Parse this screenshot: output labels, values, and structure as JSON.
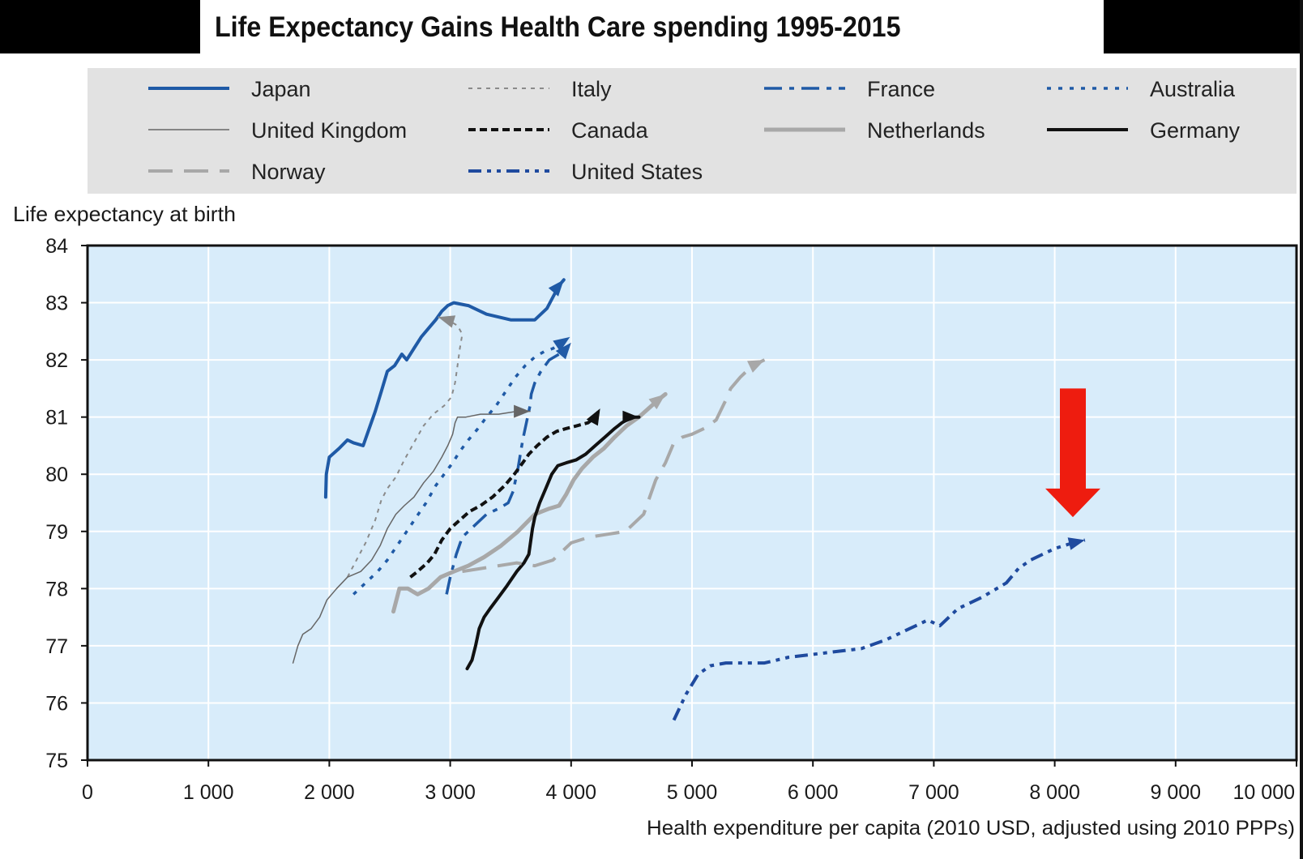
{
  "chart_data": {
    "type": "line",
    "title": "Life Expectancy Gains Health Care spending 1995-2015",
    "xlabel": "Health expenditure per capita (2010 USD, adjusted using 2010 PPPs)",
    "ylabel": "Life expectancy at birth",
    "xlim": [
      0,
      10000
    ],
    "ylim": [
      75,
      84
    ],
    "xticks": [
      0,
      1000,
      2000,
      3000,
      4000,
      5000,
      6000,
      7000,
      8000,
      9000,
      10000
    ],
    "xtick_labels": [
      "0",
      "1 000",
      "2 000",
      "3 000",
      "4 000",
      "5 000",
      "6 000",
      "7 000",
      "8 000",
      "9 000",
      "10 000"
    ],
    "yticks": [
      75,
      76,
      77,
      78,
      79,
      80,
      81,
      82,
      83,
      84
    ],
    "ytick_labels": [
      "75",
      "76",
      "77",
      "78",
      "79",
      "80",
      "81",
      "82",
      "83",
      "84"
    ],
    "grid": true,
    "legend_position": "top",
    "series": [
      {
        "name": "Japan",
        "color": "#1f5aa6",
        "style": "solid",
        "width": 4,
        "x": [
          1970,
          1975,
          2000,
          2080,
          2150,
          2200,
          2280,
          2330,
          2380,
          2430,
          2480,
          2540,
          2600,
          2640,
          2700,
          2760,
          2820,
          2880,
          2930,
          2980,
          3030,
          3150,
          3300,
          3500,
          3700,
          3800,
          3850,
          3900,
          3940
        ],
        "y": [
          79.6,
          80.0,
          80.3,
          80.45,
          80.6,
          80.55,
          80.5,
          80.8,
          81.1,
          81.45,
          81.8,
          81.9,
          82.1,
          82.0,
          82.2,
          82.4,
          82.55,
          82.7,
          82.85,
          82.95,
          83.0,
          82.95,
          82.8,
          82.7,
          82.7,
          82.9,
          83.1,
          83.3,
          83.4
        ]
      },
      {
        "name": "Italy",
        "color": "#8a8a8a",
        "style": "dotted-fine",
        "width": 2,
        "x": [
          2150,
          2200,
          2300,
          2380,
          2430,
          2480,
          2550,
          2620,
          2700,
          2780,
          2860,
          2950,
          3010,
          3040,
          3060,
          3080,
          3100,
          3060,
          2980,
          2900
        ],
        "y": [
          78.2,
          78.4,
          78.8,
          79.2,
          79.55,
          79.75,
          79.95,
          80.25,
          80.55,
          80.85,
          81.05,
          81.2,
          81.35,
          81.6,
          81.9,
          82.2,
          82.45,
          82.6,
          82.7,
          82.75
        ]
      },
      {
        "name": "France",
        "color": "#1f5aa6",
        "style": "dash-dot",
        "width": 3.5,
        "x": [
          2970,
          3000,
          3050,
          3100,
          3200,
          3300,
          3400,
          3480,
          3520,
          3560,
          3600,
          3640,
          3660,
          3670,
          3700,
          3750,
          3820,
          3900,
          3960,
          4000
        ],
        "y": [
          77.9,
          78.2,
          78.6,
          78.9,
          79.1,
          79.3,
          79.4,
          79.5,
          79.7,
          80.1,
          80.6,
          81.0,
          81.2,
          81.4,
          81.6,
          81.8,
          82.0,
          82.1,
          82.2,
          82.3
        ]
      },
      {
        "name": "Australia",
        "color": "#1f5aa6",
        "style": "dotted",
        "width": 3.5,
        "x": [
          2200,
          2300,
          2400,
          2480,
          2560,
          2640,
          2720,
          2800,
          2880,
          2950,
          3020,
          3080,
          3150,
          3230,
          3300,
          3380,
          3460,
          3540,
          3620,
          3700,
          3780,
          3850,
          3920,
          3990
        ],
        "y": [
          77.9,
          78.1,
          78.3,
          78.5,
          78.75,
          79.0,
          79.25,
          79.5,
          79.8,
          80.0,
          80.2,
          80.4,
          80.6,
          80.8,
          81.0,
          81.2,
          81.45,
          81.7,
          81.9,
          82.05,
          82.15,
          82.2,
          82.3,
          82.4
        ]
      },
      {
        "name": "United Kingdom",
        "color": "#666666",
        "style": "solid",
        "width": 1.5,
        "x": [
          1700,
          1740,
          1780,
          1850,
          1920,
          1980,
          2060,
          2150,
          2260,
          2350,
          2420,
          2480,
          2550,
          2620,
          2700,
          2780,
          2860,
          2930,
          2980,
          3020,
          3040,
          3060,
          3130,
          3250,
          3400,
          3550,
          3660
        ],
        "y": [
          76.7,
          77.0,
          77.2,
          77.3,
          77.5,
          77.8,
          78.0,
          78.2,
          78.3,
          78.5,
          78.75,
          79.05,
          79.3,
          79.45,
          79.6,
          79.85,
          80.05,
          80.3,
          80.5,
          80.7,
          80.9,
          81.0,
          81.0,
          81.05,
          81.05,
          81.1,
          81.1
        ]
      },
      {
        "name": "Canada",
        "color": "#111111",
        "style": "dashed-short",
        "width": 4,
        "x": [
          2670,
          2730,
          2810,
          2870,
          2930,
          3000,
          3080,
          3160,
          3250,
          3350,
          3450,
          3530,
          3600,
          3650,
          3720,
          3800,
          3880,
          3960,
          4050,
          4140,
          4200,
          4240
        ],
        "y": [
          78.2,
          78.3,
          78.45,
          78.6,
          78.85,
          79.05,
          79.2,
          79.35,
          79.45,
          79.6,
          79.8,
          80.0,
          80.2,
          80.35,
          80.5,
          80.65,
          80.75,
          80.8,
          80.85,
          80.9,
          81.0,
          81.15
        ]
      },
      {
        "name": "Netherlands",
        "color": "#a8a8a8",
        "style": "solid",
        "width": 5,
        "x": [
          2530,
          2580,
          2650,
          2730,
          2820,
          2920,
          3030,
          3150,
          3280,
          3420,
          3560,
          3700,
          3820,
          3900,
          3960,
          4020,
          4090,
          4180,
          4270,
          4360,
          4460,
          4560,
          4640,
          4720,
          4780
        ],
        "y": [
          77.6,
          78.0,
          78.0,
          77.9,
          78.0,
          78.2,
          78.3,
          78.4,
          78.55,
          78.75,
          79.0,
          79.3,
          79.4,
          79.45,
          79.65,
          79.9,
          80.1,
          80.3,
          80.45,
          80.65,
          80.85,
          81.0,
          81.15,
          81.3,
          81.4
        ]
      },
      {
        "name": "Germany",
        "color": "#111111",
        "style": "solid",
        "width": 4,
        "x": [
          3140,
          3180,
          3210,
          3240,
          3280,
          3330,
          3400,
          3470,
          3550,
          3610,
          3650,
          3680,
          3700,
          3740,
          3790,
          3840,
          3890,
          3960,
          4040,
          4120,
          4200,
          4280,
          4360,
          4420,
          4500,
          4560
        ],
        "y": [
          76.6,
          76.75,
          77.0,
          77.3,
          77.5,
          77.65,
          77.85,
          78.05,
          78.3,
          78.45,
          78.6,
          79.05,
          79.25,
          79.5,
          79.75,
          80.0,
          80.15,
          80.2,
          80.25,
          80.35,
          80.5,
          80.65,
          80.8,
          80.9,
          81.0,
          81.0
        ]
      },
      {
        "name": "Norway",
        "color": "#a8a8a8",
        "style": "dashed-long",
        "width": 4,
        "x": [
          3100,
          3250,
          3400,
          3550,
          3700,
          3850,
          4000,
          4150,
          4300,
          4450,
          4600,
          4700,
          4780,
          4850,
          4920,
          5000,
          5100,
          5200,
          5280,
          5320,
          5400,
          5500,
          5600
        ],
        "y": [
          78.3,
          78.35,
          78.4,
          78.45,
          78.4,
          78.5,
          78.8,
          78.9,
          78.95,
          79.0,
          79.3,
          79.9,
          80.2,
          80.55,
          80.65,
          80.7,
          80.8,
          80.95,
          81.3,
          81.5,
          81.7,
          81.9,
          82.0
        ]
      },
      {
        "name": "United States",
        "color": "#1f4a9e",
        "style": "dash-dot-dot",
        "width": 4,
        "x": [
          4850,
          4950,
          5050,
          5150,
          5280,
          5400,
          5600,
          5800,
          6000,
          6200,
          6400,
          6600,
          6800,
          6900,
          6950,
          7050,
          7200,
          7400,
          7600,
          7700,
          7800,
          7900,
          8000,
          8150,
          8250
        ],
        "y": [
          75.7,
          76.15,
          76.5,
          76.65,
          76.7,
          76.7,
          76.7,
          76.8,
          76.85,
          76.9,
          76.95,
          77.1,
          77.3,
          77.4,
          77.45,
          77.35,
          77.65,
          77.85,
          78.1,
          78.35,
          78.5,
          78.6,
          78.7,
          78.8,
          78.85
        ]
      }
    ],
    "annotation": {
      "type": "red-down-arrow",
      "color": "#ee1c0f",
      "points_to": "United States"
    }
  }
}
